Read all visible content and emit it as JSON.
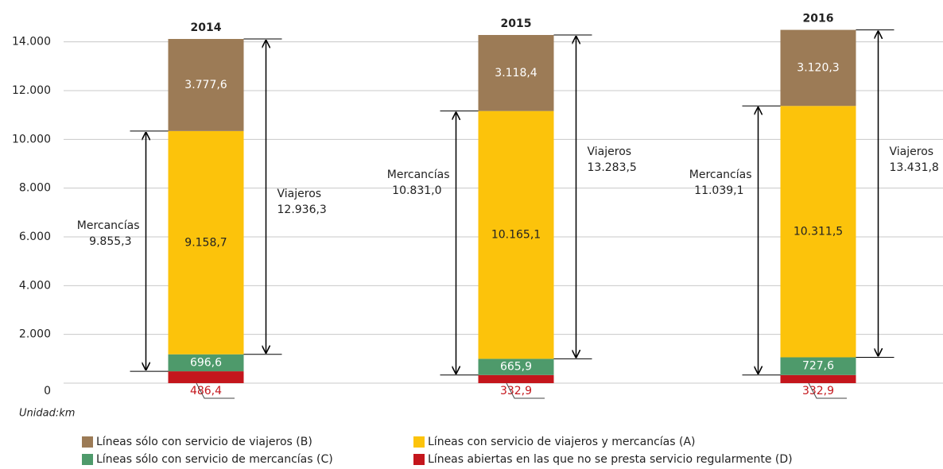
{
  "chart_data": {
    "type": "stacked-bar",
    "categories": [
      "2014",
      "2015",
      "2016"
    ],
    "series": [
      {
        "name": "Líneas abiertas en las que no se presta servicio regularmente (D)",
        "color": "#c4161c",
        "values": [
          486.4,
          332.9,
          332.9
        ],
        "value_labels": [
          "486,4",
          "332,9",
          "332,9"
        ]
      },
      {
        "name": "Líneas sólo con servicio de mercancías (C)",
        "color": "#4e9a6b",
        "values": [
          696.6,
          665.9,
          727.6
        ],
        "value_labels": [
          "696,6",
          "665,9",
          "727,6"
        ]
      },
      {
        "name": "Líneas con servicio de viajeros y mercancías (A)",
        "color": "#fcc30b",
        "values": [
          9158.7,
          10165.1,
          10311.5
        ],
        "value_labels": [
          "9.158,7",
          "10.165,1",
          "10.311,5"
        ]
      },
      {
        "name": "Líneas sólo con servicio de viajeros (B)",
        "color": "#9c7b56",
        "values": [
          3777.6,
          3118.4,
          3120.3
        ],
        "value_labels": [
          "3.777,6",
          "3.118,4",
          "3.120,3"
        ]
      }
    ],
    "annotations": [
      {
        "name": "Mercancías",
        "values": [
          9855.3,
          10831.0,
          11039.1
        ],
        "value_labels": [
          "9.855,3",
          "10.831,0",
          "11.039,1"
        ]
      },
      {
        "name": "Viajeros",
        "values": [
          12936.3,
          13283.5,
          13431.8
        ],
        "value_labels": [
          "12.936,3",
          "13.283,5",
          "13.431,8"
        ]
      }
    ],
    "ylim": [
      0,
      15000
    ],
    "yticks": [
      0,
      {
        "value": 2000,
        "label": "2.000"
      },
      {
        "value": 4000,
        "label": "4.000"
      },
      {
        "value": 6000,
        "label": "6.000"
      },
      {
        "value": 8000,
        "label": "8.000"
      },
      {
        "value": 10000,
        "label": "10.000"
      },
      {
        "value": 12000,
        "label": "12.000"
      },
      {
        "value": 14000,
        "label": "14.000"
      }
    ],
    "grid": true,
    "note": "Unidad:km"
  }
}
